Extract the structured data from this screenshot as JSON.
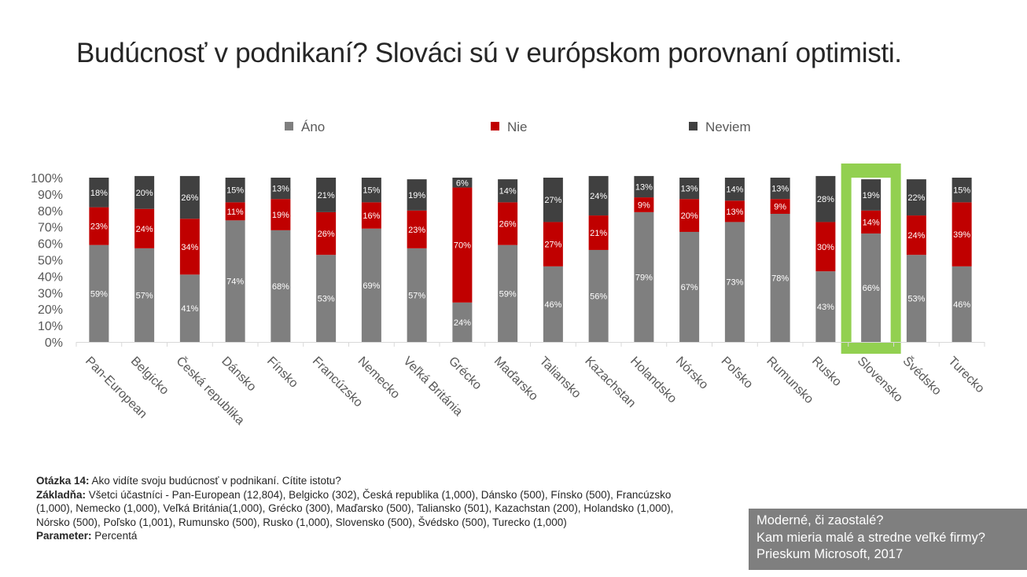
{
  "title": "Budúcnosť v podnikaní? Slováci sú v európskom porovnaní optimisti.",
  "chart_data": {
    "type": "bar",
    "stacked": true,
    "categories": [
      "Pan-European",
      "Belgicko",
      "Česká republika",
      "Dánsko",
      "Fínsko",
      "Francúzsko",
      "Nemecko",
      "Veľká Británia",
      "Grécko",
      "Maďarsko",
      "Taliansko",
      "Kazachstan",
      "Holandsko",
      "Nórsko",
      "Poľsko",
      "Rumunsko",
      "Rusko",
      "Slovensko",
      "Švédsko",
      "Turecko"
    ],
    "series": [
      {
        "name": "Áno",
        "color": "#7f7f7f",
        "values": [
          59,
          57,
          41,
          74,
          68,
          53,
          69,
          57,
          24,
          59,
          46,
          56,
          79,
          67,
          73,
          78,
          43,
          66,
          53,
          46
        ]
      },
      {
        "name": "Nie",
        "color": "#c00000",
        "values": [
          23,
          24,
          34,
          11,
          19,
          26,
          16,
          23,
          70,
          26,
          27,
          21,
          9,
          20,
          13,
          9,
          30,
          14,
          24,
          39
        ]
      },
      {
        "name": "Neviem",
        "color": "#404040",
        "values": [
          18,
          20,
          26,
          15,
          13,
          21,
          15,
          19,
          6,
          14,
          27,
          24,
          13,
          13,
          14,
          13,
          28,
          19,
          22,
          15
        ]
      }
    ],
    "highlight": "Slovensko",
    "highlight_color": "#92d050",
    "ylim": [
      0,
      100
    ],
    "yticks": [
      "0%",
      "10%",
      "20%",
      "30%",
      "40%",
      "50%",
      "60%",
      "70%",
      "80%",
      "90%",
      "100%"
    ],
    "legend": "top",
    "grid": false
  },
  "footnote": {
    "q_label": "Otázka 14:",
    "q_text": " Ako vidíte svoju budúcnosť v podnikaní. Cítite istotu?",
    "base_label": "Základňa:",
    "base_text": " Všetci účastníci - Pan-European (12,804), Belgicko (302), Česká republika (1,000), Dánsko (500), Fínsko (500), Francúzsko (1,000), Nemecko (1,000), Veľká Británia(1,000), Grécko (300), Maďarsko (500), Taliansko (501), Kazachstan (200), Holandsko (1,000), Nórsko (500), Poľsko (1,001), Rumunsko (500), Rusko (1,000), Slovensko (500), Švédsko (500), Turecko (1,000)",
    "param_label": "Parameter:",
    "param_text": " Percentá"
  },
  "infobox": {
    "line1": "Moderné, či zaostalé?",
    "line2": "Kam mieria malé a stredne veľké firmy?",
    "line3": "Prieskum Microsoft, 2017"
  }
}
